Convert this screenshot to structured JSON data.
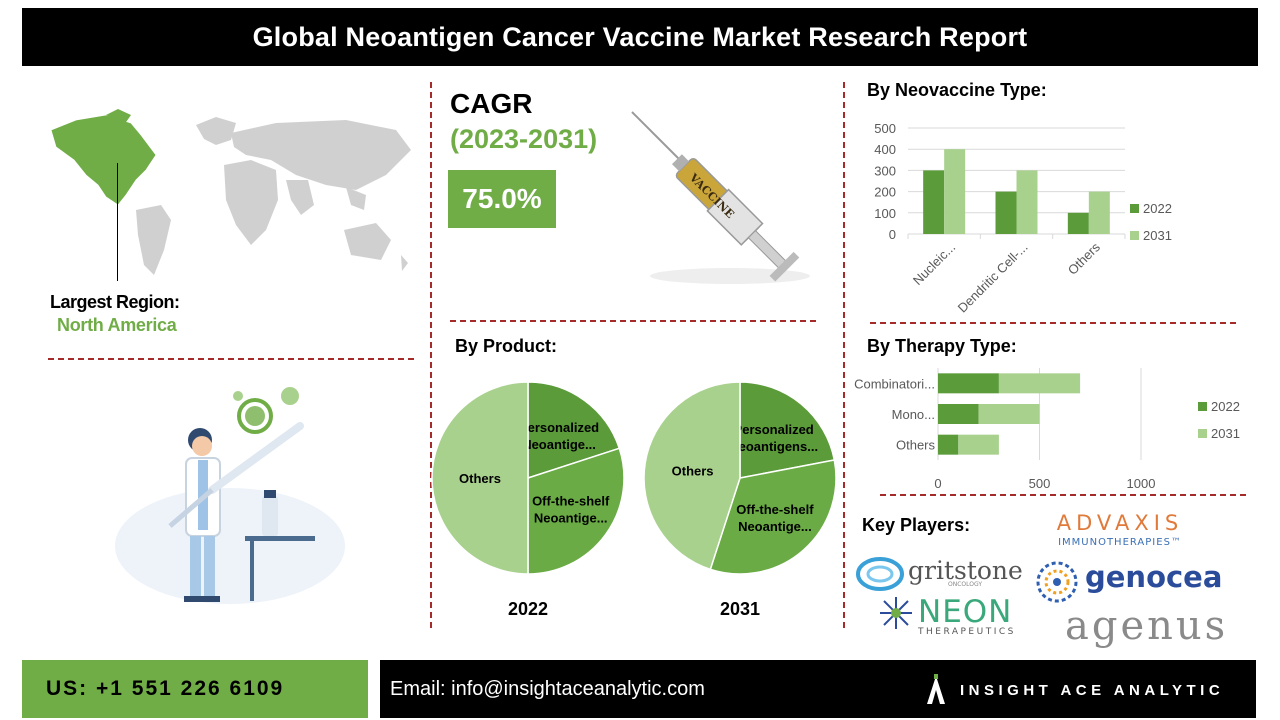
{
  "header": {
    "title": "Global Neoantigen Cancer Vaccine Market Research Report"
  },
  "cagr": {
    "label": "CAGR",
    "period": "(2023-2031)",
    "value": "75.0%"
  },
  "syringe": {
    "label": "VACCINE"
  },
  "region": {
    "label": "Largest Region:",
    "value": "North America"
  },
  "sections": {
    "neovaccine": "By Neovaccine Type:",
    "product": "By Product:",
    "therapy": "By Therapy Type:",
    "players": "Key Players:"
  },
  "chart_data": [
    {
      "type": "bar",
      "title": "By Neovaccine Type:",
      "categories": [
        "Nucleic...",
        "Dendritic Cell-...",
        "Others"
      ],
      "series": [
        {
          "name": "2022",
          "values": [
            300,
            200,
            100
          ]
        },
        {
          "name": "2031",
          "values": [
            400,
            300,
            200
          ]
        }
      ],
      "ylim": [
        0,
        500
      ],
      "yticks": [
        "0",
        "100",
        "200",
        "300",
        "400",
        "500"
      ],
      "grid": true,
      "legend": "right"
    },
    {
      "type": "pie",
      "title": "2022",
      "labels": [
        "Personalized Neoantige...",
        "Off-the-shelf Neoantige...",
        "Others"
      ],
      "values": [
        20,
        30,
        50
      ]
    },
    {
      "type": "pie",
      "title": "2031",
      "labels": [
        "Personalized Neoantigens...",
        "Off-the-shelf Neoantige...",
        "Others"
      ],
      "values": [
        22,
        33,
        45
      ]
    },
    {
      "type": "bar",
      "orientation": "horizontal",
      "title": "By Therapy Type:",
      "categories": [
        "Combinatori...",
        "Mono...",
        "Others"
      ],
      "series": [
        {
          "name": "2022",
          "values": [
            300,
            200,
            100
          ]
        },
        {
          "name": "2031",
          "values": [
            400,
            300,
            200
          ]
        }
      ],
      "stacked": true,
      "xlim": [
        0,
        1000
      ],
      "xticks": [
        "0",
        "500",
        "1000"
      ],
      "grid": true,
      "legend": "right"
    }
  ],
  "players": {
    "advaxis": "ADVAXIS",
    "advaxis_sub": "IMMUNOTHERAPIES™",
    "gritstone": "gritstone",
    "gritstone_sub": "ONCOLOGY",
    "genocea": "genocea",
    "neon": "NEON",
    "neon_sub": "THERAPEUTICS",
    "agenus": "agenus"
  },
  "footer": {
    "phone": "US: +1 551 226 6109",
    "email": "Email: info@insightaceanalytic.com",
    "brand": "INSIGHT ACE ANALYTIC"
  },
  "colors": {
    "green_dark": "#5b9b3a",
    "green_light": "#a9d18e",
    "accent": "#70ad47",
    "divider": "#a52a2a"
  }
}
